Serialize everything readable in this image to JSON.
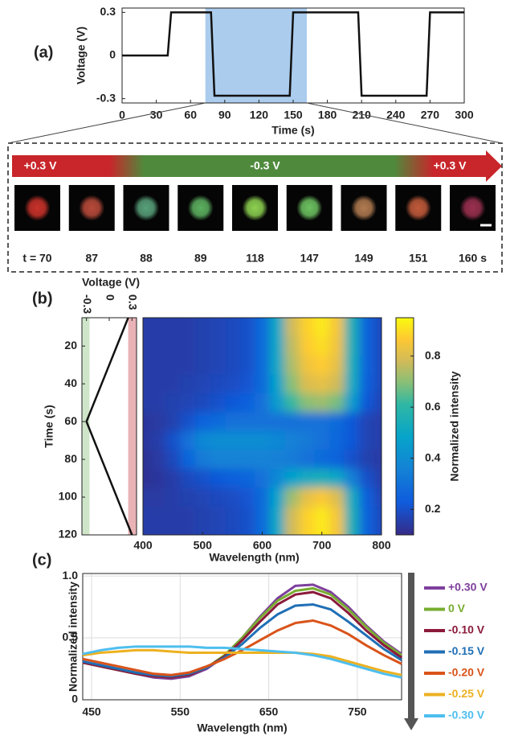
{
  "chart_data": [
    {
      "type": "line",
      "panel_label": "(a)",
      "xlabel": "Time (s)",
      "ylabel": "Voltage (V)",
      "x": [
        0,
        40,
        43,
        78,
        81,
        147,
        150,
        207,
        210,
        267,
        270,
        300
      ],
      "values": [
        0,
        0,
        0.3,
        0.3,
        -0.28,
        -0.28,
        0.3,
        0.3,
        -0.28,
        -0.28,
        0.3,
        0.3
      ],
      "color": "#111111",
      "xlim": [
        0,
        300
      ],
      "xticks": [
        0,
        30,
        60,
        90,
        120,
        150,
        180,
        210,
        240,
        270,
        300
      ],
      "ylim": [
        -0.33,
        0.33
      ],
      "yticks": [
        -0.3,
        0,
        0.3
      ],
      "highlight": [
        73,
        162
      ],
      "highlight_color": "#9cc3ea"
    },
    {
      "type": "line",
      "orientation": "vertical",
      "panel_label": "(b)",
      "xlabel": "Time (s)",
      "ylabel": "Voltage (V)",
      "x": [
        5,
        60,
        120
      ],
      "values": [
        0.25,
        -0.3,
        0.3
      ],
      "color": "#111111",
      "xlim": [
        5,
        120
      ],
      "xticks": [
        20,
        40,
        60,
        80,
        100,
        120
      ],
      "ylim": [
        -0.36,
        0.36
      ],
      "yticks": [
        -0.3,
        0,
        0.3
      ],
      "bands": [
        {
          "range": [
            -0.36,
            -0.26
          ],
          "color": "#cfe5c9"
        },
        {
          "range": [
            0.25,
            0.36
          ],
          "color": "#e9b3b5"
        }
      ]
    },
    {
      "type": "heatmap",
      "xlabel": "Wavelength (nm)",
      "colorbar_label": "Normalized intensity",
      "x": [
        400,
        425,
        450,
        475,
        500,
        525,
        550,
        575,
        600,
        625,
        650,
        675,
        700,
        725,
        750,
        775,
        800
      ],
      "y": [
        10,
        20,
        30,
        40,
        50,
        60,
        70,
        80,
        90,
        100,
        110,
        120
      ],
      "z": [
        [
          0.15,
          0.15,
          0.15,
          0.15,
          0.16,
          0.17,
          0.18,
          0.2,
          0.28,
          0.5,
          0.78,
          0.88,
          0.92,
          0.85,
          0.55,
          0.25,
          0.18
        ],
        [
          0.15,
          0.15,
          0.15,
          0.15,
          0.16,
          0.17,
          0.18,
          0.2,
          0.28,
          0.5,
          0.76,
          0.87,
          0.9,
          0.84,
          0.55,
          0.25,
          0.18
        ],
        [
          0.15,
          0.15,
          0.15,
          0.15,
          0.16,
          0.17,
          0.18,
          0.2,
          0.28,
          0.5,
          0.74,
          0.84,
          0.87,
          0.82,
          0.54,
          0.25,
          0.18
        ],
        [
          0.15,
          0.15,
          0.15,
          0.16,
          0.17,
          0.18,
          0.19,
          0.21,
          0.28,
          0.48,
          0.7,
          0.8,
          0.82,
          0.78,
          0.52,
          0.24,
          0.18
        ],
        [
          0.15,
          0.15,
          0.16,
          0.17,
          0.18,
          0.2,
          0.22,
          0.24,
          0.3,
          0.45,
          0.62,
          0.7,
          0.72,
          0.68,
          0.45,
          0.22,
          0.17
        ],
        [
          0.13,
          0.14,
          0.16,
          0.2,
          0.25,
          0.28,
          0.3,
          0.3,
          0.3,
          0.3,
          0.3,
          0.3,
          0.3,
          0.28,
          0.22,
          0.17,
          0.15
        ],
        [
          0.13,
          0.15,
          0.2,
          0.3,
          0.38,
          0.4,
          0.4,
          0.4,
          0.4,
          0.38,
          0.35,
          0.33,
          0.3,
          0.27,
          0.22,
          0.17,
          0.15
        ],
        [
          0.12,
          0.14,
          0.18,
          0.26,
          0.33,
          0.36,
          0.36,
          0.36,
          0.36,
          0.35,
          0.33,
          0.3,
          0.28,
          0.25,
          0.2,
          0.16,
          0.14
        ],
        [
          0.12,
          0.13,
          0.15,
          0.18,
          0.2,
          0.22,
          0.24,
          0.26,
          0.3,
          0.38,
          0.48,
          0.52,
          0.54,
          0.5,
          0.35,
          0.2,
          0.15
        ],
        [
          0.14,
          0.14,
          0.15,
          0.16,
          0.17,
          0.18,
          0.19,
          0.21,
          0.28,
          0.48,
          0.72,
          0.82,
          0.86,
          0.8,
          0.52,
          0.24,
          0.17
        ],
        [
          0.15,
          0.15,
          0.15,
          0.15,
          0.16,
          0.17,
          0.18,
          0.2,
          0.28,
          0.5,
          0.78,
          0.88,
          0.92,
          0.85,
          0.55,
          0.25,
          0.18
        ],
        [
          0.15,
          0.15,
          0.15,
          0.15,
          0.16,
          0.17,
          0.18,
          0.2,
          0.28,
          0.5,
          0.78,
          0.88,
          0.92,
          0.85,
          0.55,
          0.25,
          0.18
        ]
      ],
      "xlim": [
        400,
        800
      ],
      "xticks": [
        400,
        500,
        600,
        700,
        800
      ],
      "ylim": [
        5,
        120
      ],
      "colormap": "parula",
      "clim": [
        0.1,
        0.95
      ],
      "cticks": [
        0.2,
        0.4,
        0.6,
        0.8
      ]
    },
    {
      "type": "line",
      "panel_label": "(c)",
      "xlabel": "Wavelength (nm)",
      "ylabel": "Normalized intensity",
      "x": [
        440,
        460,
        480,
        500,
        520,
        540,
        560,
        580,
        600,
        620,
        640,
        660,
        680,
        700,
        720,
        740,
        760,
        780,
        800
      ],
      "series": [
        {
          "name": "+0.30 V",
          "color": "#7e3f9d",
          "values": [
            0.3,
            0.27,
            0.24,
            0.21,
            0.18,
            0.17,
            0.19,
            0.25,
            0.35,
            0.5,
            0.67,
            0.82,
            0.92,
            0.93,
            0.87,
            0.75,
            0.6,
            0.47,
            0.37
          ]
        },
        {
          "name": "0 V",
          "color": "#77ac30",
          "values": [
            0.3,
            0.27,
            0.24,
            0.21,
            0.19,
            0.18,
            0.2,
            0.26,
            0.36,
            0.5,
            0.66,
            0.8,
            0.88,
            0.9,
            0.85,
            0.73,
            0.59,
            0.46,
            0.36
          ]
        },
        {
          "name": "-0.10 V",
          "color": "#8b1a3a",
          "values": [
            0.3,
            0.27,
            0.24,
            0.21,
            0.19,
            0.18,
            0.2,
            0.26,
            0.35,
            0.48,
            0.63,
            0.77,
            0.85,
            0.87,
            0.82,
            0.7,
            0.56,
            0.44,
            0.34
          ]
        },
        {
          "name": "-0.15 V",
          "color": "#1f6fb5",
          "values": [
            0.31,
            0.28,
            0.25,
            0.22,
            0.2,
            0.19,
            0.21,
            0.26,
            0.34,
            0.45,
            0.58,
            0.69,
            0.76,
            0.77,
            0.73,
            0.63,
            0.52,
            0.41,
            0.32
          ]
        },
        {
          "name": "-0.20 V",
          "color": "#d95319",
          "values": [
            0.33,
            0.3,
            0.27,
            0.24,
            0.21,
            0.2,
            0.22,
            0.27,
            0.33,
            0.4,
            0.48,
            0.56,
            0.62,
            0.64,
            0.6,
            0.53,
            0.44,
            0.36,
            0.29
          ]
        },
        {
          "name": "-0.25 V",
          "color": "#edb120",
          "values": [
            0.36,
            0.38,
            0.39,
            0.4,
            0.4,
            0.39,
            0.38,
            0.38,
            0.38,
            0.38,
            0.38,
            0.38,
            0.38,
            0.37,
            0.35,
            0.31,
            0.27,
            0.23,
            0.2
          ]
        },
        {
          "name": "-0.30 V",
          "color": "#4dbeee",
          "values": [
            0.37,
            0.4,
            0.42,
            0.43,
            0.43,
            0.43,
            0.43,
            0.42,
            0.42,
            0.41,
            0.4,
            0.39,
            0.38,
            0.36,
            0.33,
            0.29,
            0.25,
            0.21,
            0.18
          ]
        }
      ],
      "xlim": [
        440,
        800
      ],
      "xticks": [
        450,
        550,
        650,
        750
      ],
      "ylim": [
        0,
        1.02
      ],
      "yticks": [
        0,
        0.5,
        {
          "value": 1,
          "label": "1.0"
        }
      ],
      "grid": true,
      "legend": "right"
    }
  ],
  "zoom_strip": {
    "segments": [
      "+0.3 V",
      "-0.3 V",
      "+0.3 V"
    ],
    "frames": [
      {
        "label": "t = 70",
        "color": "#c8322a"
      },
      {
        "label": "87",
        "color": "#b84a3a"
      },
      {
        "label": "88",
        "color": "#58a07a"
      },
      {
        "label": "89",
        "color": "#5cb060"
      },
      {
        "label": "118",
        "color": "#8cd050"
      },
      {
        "label": "147",
        "color": "#6cc060"
      },
      {
        "label": "149",
        "color": "#b07a50"
      },
      {
        "label": "151",
        "color": "#c05a3a"
      },
      {
        "label": "160 s",
        "color": "#9a3050"
      }
    ]
  }
}
